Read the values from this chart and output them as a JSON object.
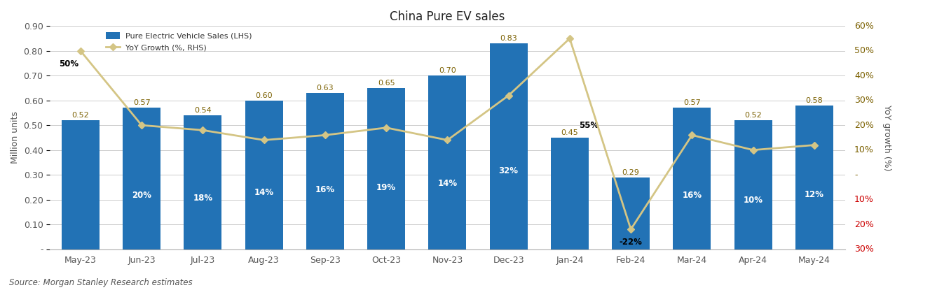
{
  "title": "China Pure EV sales",
  "categories": [
    "May-23",
    "Jun-23",
    "Jul-23",
    "Aug-23",
    "Sep-23",
    "Oct-23",
    "Nov-23",
    "Dec-23",
    "Jan-24",
    "Feb-24",
    "Mar-24",
    "Apr-24",
    "May-24"
  ],
  "bar_values": [
    0.52,
    0.57,
    0.54,
    0.6,
    0.63,
    0.65,
    0.7,
    0.83,
    0.45,
    0.29,
    0.57,
    0.52,
    0.58
  ],
  "yoy_growth": [
    50,
    20,
    18,
    14,
    16,
    19,
    14,
    32,
    55,
    -22,
    16,
    10,
    12
  ],
  "bar_color": "#2272B5",
  "line_color": "#D4C585",
  "ylabel_left": "Million units",
  "ylabel_right": "YoY growth (%)",
  "ylim_left": [
    0,
    0.9
  ],
  "ylim_right": [
    -30,
    60
  ],
  "yticks_left": [
    0,
    0.1,
    0.2,
    0.3,
    0.4,
    0.5,
    0.6,
    0.7,
    0.8,
    0.9
  ],
  "ytick_labels_left": [
    "-",
    "0.10",
    "0.20",
    "0.30",
    "0.40",
    "0.50",
    "0.60",
    "0.70",
    "0.80",
    "0.90"
  ],
  "yticks_right_vals": [
    60,
    50,
    40,
    30,
    20,
    10,
    0,
    -10,
    -20,
    -30
  ],
  "ytick_labels_right": [
    "60%",
    "50%",
    "40%",
    "30%",
    "20%",
    "10%",
    "-",
    "10%",
    "20%",
    "30%"
  ],
  "ytick_colors_right": [
    "#7B6000",
    "#7B6000",
    "#7B6000",
    "#7B6000",
    "#7B6000",
    "#7B6000",
    "#7B6000",
    "#CC0000",
    "#CC0000",
    "#CC0000"
  ],
  "legend_bar_label": "Pure Electric Vehicle Sales (LHS)",
  "legend_line_label": "YoY Growth (%, RHS)",
  "source_text": "Source: Morgan Stanley Research estimates",
  "background_color": "#FFFFFF",
  "grid_color": "#CCCCCC",
  "bar_value_labels": [
    "0.52",
    "0.57",
    "0.54",
    "0.60",
    "0.63",
    "0.65",
    "0.70",
    "0.83",
    "0.45",
    "0.29",
    "0.57",
    "0.52",
    "0.58"
  ],
  "bar_label_color": "#7B6000",
  "yoy_labels": [
    "50%",
    "20%",
    "18%",
    "14%",
    "16%",
    "19%",
    "14%",
    "32%",
    "55%",
    "-22%",
    "16%",
    "10%",
    "12%"
  ],
  "yoy_label_colors": [
    "black",
    "white",
    "white",
    "white",
    "white",
    "white",
    "white",
    "white",
    "black",
    "black",
    "white",
    "white",
    "white"
  ],
  "yoy_label_bold": [
    true,
    true,
    true,
    true,
    true,
    true,
    true,
    true,
    true,
    true,
    true,
    true,
    true
  ],
  "yoy_outside_bar": [
    true,
    false,
    false,
    false,
    false,
    false,
    false,
    false,
    true,
    true,
    false,
    false,
    false
  ],
  "title_fontsize": 12,
  "axis_label_fontsize": 9,
  "tick_fontsize": 9,
  "bar_val_fontsize": 8,
  "yoy_fontsize": 8.5
}
